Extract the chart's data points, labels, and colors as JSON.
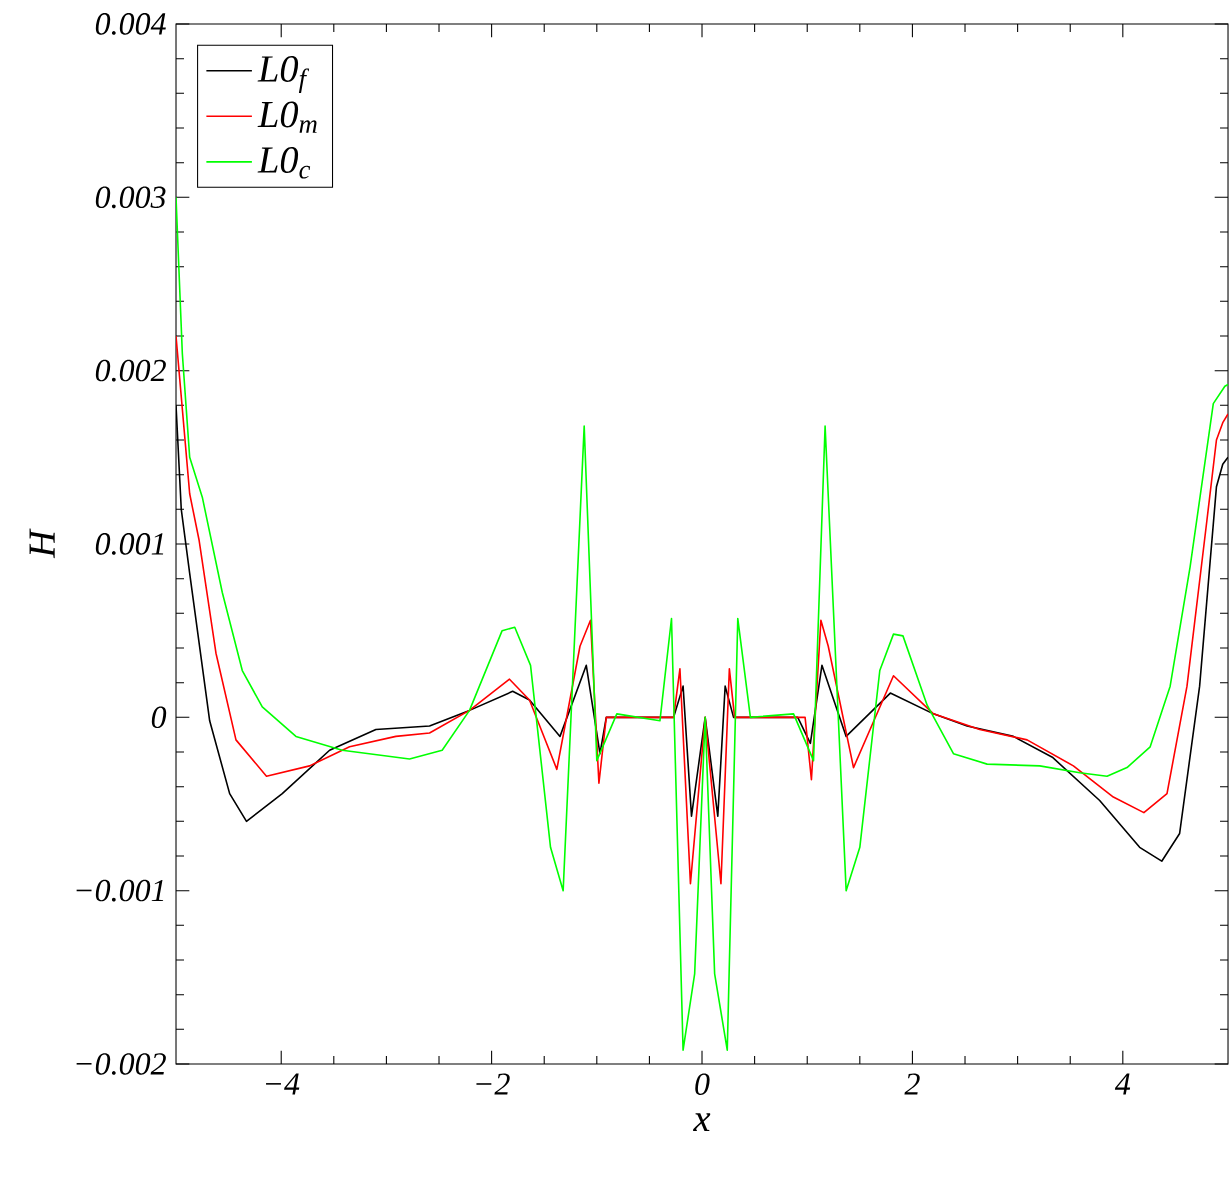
{
  "chart_data": {
    "type": "line",
    "xlabel": "x",
    "ylabel": "H",
    "xlim": [
      -5,
      5
    ],
    "ylim": [
      -0.002,
      0.004
    ],
    "xticks": [
      {
        "value": -4,
        "label": "−4"
      },
      {
        "value": -2,
        "label": "−2"
      },
      0,
      2,
      4
    ],
    "yticks": [
      {
        "value": -0.002,
        "label": "−0.002"
      },
      {
        "value": -0.001,
        "label": "−0.001"
      },
      0,
      0.001,
      0.002,
      0.003,
      0.004
    ],
    "legend": "top left",
    "grid": false,
    "series": [
      {
        "name": "L0$_{f}$",
        "color": "#000000",
        "x": [
          -5,
          -4.95,
          -4.87,
          -4.68,
          -4.49,
          -4.33,
          -3.99,
          -3.54,
          -3.1,
          -2.59,
          -2.21,
          -1.8,
          -1.64,
          -1.35,
          -1.1,
          -0.97,
          -0.91,
          -0.27,
          -0.18,
          -0.1,
          0.03,
          0.15,
          0.22,
          0.3,
          0.91,
          1.03,
          1.14,
          1.37,
          1.79,
          2.2,
          2.52,
          2.96,
          3.33,
          3.78,
          4.16,
          4.37,
          4.54,
          4.73,
          4.89,
          4.95,
          5
        ],
        "values": [
          0.0018,
          0.0012,
          0.00083,
          -2e-05,
          -0.00044,
          -0.0006,
          -0.00044,
          -0.00019,
          -7e-05,
          -5e-05,
          4e-05,
          0.00015,
          0.0001,
          -0.00011,
          0.0003,
          -0.00021,
          0,
          0,
          0.00018,
          -0.00057,
          0,
          -0.00057,
          0.00018,
          0,
          0,
          -0.00015,
          0.0003,
          -0.00011,
          0.00014,
          2e-05,
          -5e-05,
          -0.00011,
          -0.00023,
          -0.00048,
          -0.00075,
          -0.00083,
          -0.00067,
          0.00018,
          0.00133,
          0.00146,
          0.0015
        ]
      },
      {
        "name": "L0$_{m}$",
        "color": "#ff0000",
        "x": [
          -5,
          -4.87,
          -4.78,
          -4.62,
          -4.43,
          -4.14,
          -3.73,
          -3.35,
          -2.91,
          -2.59,
          -2.21,
          -1.83,
          -1.64,
          -1.38,
          -1.16,
          -1.06,
          -0.98,
          -0.91,
          -0.27,
          -0.21,
          -0.11,
          0.03,
          0.18,
          0.26,
          0.31,
          0.98,
          1.04,
          1.13,
          1.2,
          1.44,
          1.82,
          2.2,
          2.64,
          3.09,
          3.53,
          3.91,
          4.2,
          4.42,
          4.61,
          4.8,
          4.89,
          4.95,
          5
        ],
        "values": [
          0.0022,
          0.00129,
          0.00102,
          0.00037,
          -0.00013,
          -0.00034,
          -0.00028,
          -0.00017,
          -0.00011,
          -9e-05,
          4e-05,
          0.00022,
          0.0001,
          -0.0003,
          0.00041,
          0.00056,
          -0.00038,
          0,
          0,
          0.00028,
          -0.00096,
          0,
          -0.00096,
          0.00028,
          0,
          0,
          -0.00036,
          0.00056,
          0.00041,
          -0.00029,
          0.00024,
          2e-05,
          -7e-05,
          -0.00013,
          -0.00028,
          -0.00046,
          -0.00055,
          -0.00044,
          0.00018,
          0.00114,
          0.0016,
          0.0017,
          0.00175
        ]
      },
      {
        "name": "L0$_{c}$",
        "color": "#00ff00",
        "x": [
          -5,
          -4.94,
          -4.87,
          -4.75,
          -4.56,
          -4.37,
          -4.18,
          -3.86,
          -3.42,
          -2.78,
          -2.47,
          -2.21,
          -1.9,
          -1.78,
          -1.63,
          -1.44,
          -1.32,
          -1.12,
          -1.0,
          -0.81,
          -0.4,
          -0.29,
          -0.18,
          -0.07,
          0.03,
          0.12,
          0.24,
          0.34,
          0.46,
          0.87,
          1.06,
          1.17,
          1.37,
          1.5,
          1.69,
          1.82,
          1.91,
          2.14,
          2.39,
          2.71,
          3.21,
          3.59,
          3.85,
          4.04,
          4.26,
          4.45,
          4.64,
          4.86,
          4.97,
          5
        ],
        "values": [
          0.003,
          0.0021,
          0.0015,
          0.00127,
          0.00072,
          0.00027,
          6e-05,
          -0.00011,
          -0.00019,
          -0.00024,
          -0.00019,
          4e-05,
          0.0005,
          0.00052,
          0.0003,
          -0.00075,
          -0.001,
          0.00168,
          -0.00025,
          2e-05,
          -2e-05,
          0.00057,
          -0.00192,
          -0.00148,
          0,
          -0.00148,
          -0.00192,
          0.00057,
          0,
          2e-05,
          -0.00025,
          0.00168,
          -0.001,
          -0.00075,
          0.00027,
          0.00048,
          0.00047,
          7e-05,
          -0.00021,
          -0.00027,
          -0.00028,
          -0.00032,
          -0.00034,
          -0.00029,
          -0.00017,
          0.00018,
          0.00087,
          0.00181,
          0.00191,
          0.00192
        ]
      }
    ]
  }
}
